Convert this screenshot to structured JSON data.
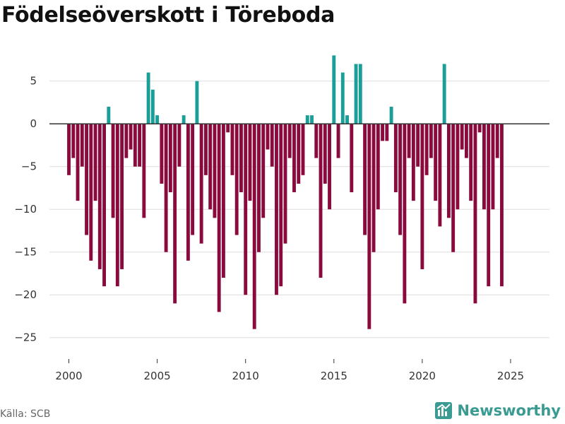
{
  "title": "Födelseöverskott i Töreboda",
  "source": "Källa: SCB",
  "brand": {
    "name": "Newsworthy",
    "icon": "newsworthy-logo-icon"
  },
  "colors": {
    "positive": "#1a9e98",
    "negative": "#8b0a3e",
    "grid": "#dddddd",
    "zero_line": "#333333"
  },
  "chart_data": {
    "type": "bar",
    "title": "Födelseöverskott i Töreboda",
    "xlabel": "",
    "ylabel": "",
    "frequency": "quarterly",
    "start": 2000.0,
    "step": 0.25,
    "values": [
      -6,
      -4,
      -9,
      -5,
      -13,
      -16,
      -9,
      -17,
      -19,
      2,
      -11,
      -19,
      -17,
      -4,
      -3,
      -5,
      -5,
      -11,
      6,
      4,
      1,
      -7,
      -15,
      -8,
      -21,
      -5,
      1,
      -16,
      -13,
      5,
      -14,
      -6,
      -10,
      -11,
      -22,
      -18,
      -1,
      -6,
      -13,
      -8,
      -20,
      -9,
      -24,
      -15,
      -11,
      -3,
      -5,
      -20,
      -19,
      -14,
      -4,
      -8,
      -7,
      -6,
      1,
      1,
      -4,
      -18,
      -7,
      -10,
      8,
      -4,
      6,
      1,
      -8,
      7,
      7,
      -13,
      -24,
      -15,
      -10,
      -2,
      -2,
      2,
      -8,
      -13,
      -21,
      -4,
      -9,
      -5,
      -17,
      -6,
      -4,
      -9,
      -12,
      7,
      -11,
      -15,
      -10,
      -3,
      -4,
      -9,
      -21,
      -1,
      -10,
      -19,
      -10,
      -4,
      -19
    ],
    "xlim": [
      1998.9,
      2027.2
    ],
    "ylim": [
      -27.5,
      8.2
    ],
    "xticks": [
      2000,
      2005,
      2010,
      2015,
      2020,
      2025
    ],
    "xtick_labels": [
      "2000",
      "2005",
      "2010",
      "2015",
      "2020",
      "2025"
    ],
    "yticks": [
      5,
      0,
      -5,
      -10,
      -15,
      -20,
      -25
    ],
    "ytick_labels": [
      "5",
      "0",
      "−5",
      "−10",
      "−15",
      "−20",
      "−25"
    ],
    "grid": true,
    "legend": "none"
  }
}
